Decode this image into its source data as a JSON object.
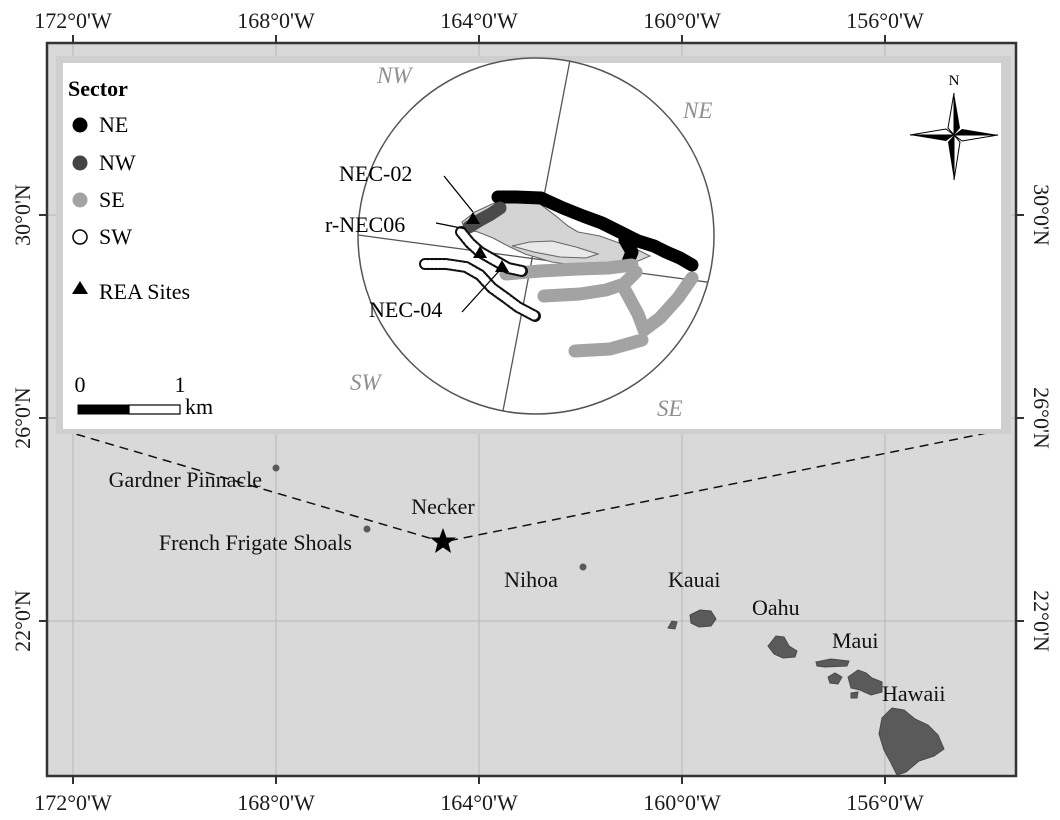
{
  "map": {
    "x_ticks": [
      "172°0'W",
      "168°0'W",
      "164°0'W",
      "160°0'W",
      "156°0'W"
    ],
    "y_ticks": [
      "30°0'N",
      "26°0'N",
      "22°0'N"
    ],
    "places": {
      "gardner": "Gardner Pinnacle",
      "ffs": "French Frigate Shoals",
      "necker": "Necker",
      "nihoa": "Nihoa",
      "kauai": "Kauai",
      "oahu": "Oahu",
      "maui": "Maui",
      "hawaii": "Hawaii"
    },
    "colors": {
      "land": "#5a5a5a",
      "ocean": "#d9d9d9",
      "frame": "#333333"
    }
  },
  "inset": {
    "sectors": {
      "nw": "NW",
      "ne": "NE",
      "sw": "SW",
      "se": "SE"
    },
    "sites": {
      "nec02": "NEC-02",
      "rnec06": "r-NEC06",
      "nec04": "NEC-04"
    },
    "legend": {
      "title": "Sector",
      "items": [
        {
          "label": "NE",
          "color": "#000000"
        },
        {
          "label": "NW",
          "color": "#444444"
        },
        {
          "label": "SE",
          "color": "#a3a3a3"
        },
        {
          "label": "SW",
          "color": "#ffffff"
        }
      ],
      "sites_label": "REA Sites"
    },
    "scale": {
      "start": "0",
      "end": "1",
      "unit": "km"
    },
    "north_label": "N"
  }
}
